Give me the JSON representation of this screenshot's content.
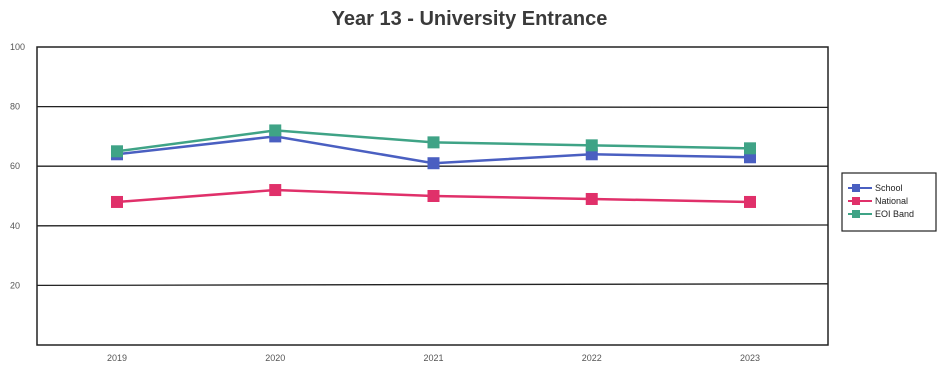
{
  "chart_data": {
    "type": "line",
    "title": "Year 13 - University Entrance",
    "xlabel": "",
    "ylabel": "",
    "categories": [
      "2019",
      "2020",
      "2021",
      "2022",
      "2023"
    ],
    "ylim": [
      0,
      100
    ],
    "yticks": [
      20,
      40,
      60,
      80,
      100
    ],
    "ytick_labels": [
      "20",
      "40",
      "60",
      "80",
      "100"
    ],
    "grid": true,
    "legend_position": "right",
    "series": [
      {
        "name": "School",
        "color": "#4a5fc1",
        "values": [
          64,
          70,
          61,
          64,
          63
        ]
      },
      {
        "name": "National",
        "color": "#e0306a",
        "values": [
          48,
          52,
          50,
          49,
          48
        ]
      },
      {
        "name": "EOI Band",
        "color": "#3fa386",
        "values": [
          65,
          72,
          68,
          67,
          66
        ]
      }
    ]
  }
}
